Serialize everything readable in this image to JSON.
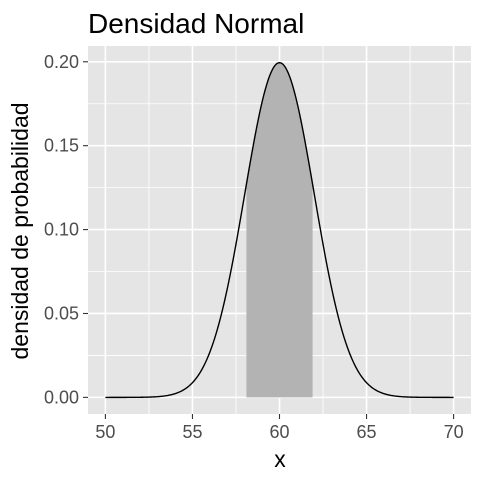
{
  "chart_data": {
    "type": "line",
    "title": "Densidad Normal",
    "xlabel": "x",
    "ylabel": "densidad de probabilidad",
    "distribution": {
      "family": "normal",
      "mean": 60,
      "sd": 2
    },
    "x_range": [
      50,
      70
    ],
    "shaded_interval": [
      58.1,
      61.9
    ],
    "xlim": [
      49,
      71
    ],
    "ylim": [
      -0.0099,
      0.2094
    ],
    "x_ticks": [
      50,
      55,
      60,
      65,
      70
    ],
    "x_tick_labels": [
      "50",
      "55",
      "60",
      "65",
      "70"
    ],
    "y_ticks": [
      0.0,
      0.05,
      0.1,
      0.15,
      0.2
    ],
    "y_tick_labels": [
      "0.00",
      "0.05",
      "0.10",
      "0.15",
      "0.20"
    ],
    "grid": true,
    "colors": {
      "panel_background": "#e5e5e5",
      "grid": "#ffffff",
      "curve": "#000000",
      "shade": "#b3b3b3"
    }
  }
}
